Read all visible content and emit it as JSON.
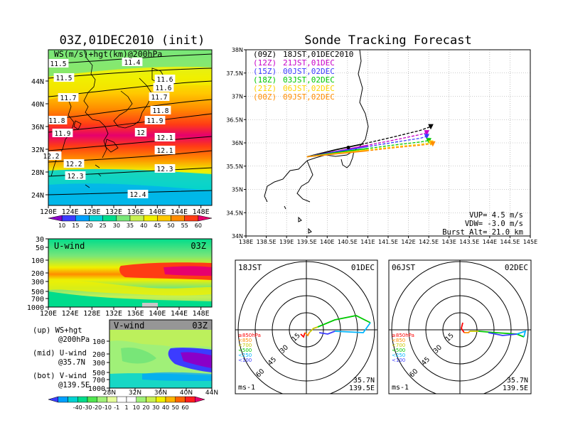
{
  "titles": {
    "left": "03Z,01DEC2010 (init)",
    "right": "Sonde Tracking Forecast"
  },
  "colors": {
    "wind_scale": [
      "#8a00c8",
      "#3c3cff",
      "#00a0ff",
      "#00d2d2",
      "#00dc8c",
      "#78e678",
      "#c8f050",
      "#f0f000",
      "#ffc800",
      "#ff8c00",
      "#ff3c14",
      "#e6006e"
    ],
    "vwind_scale": [
      "#3c3cff",
      "#00a0ff",
      "#00d2d2",
      "#00dc8c",
      "#50e650",
      "#a0f078",
      "#e6ff9b",
      "#ffffff",
      "#ffffff",
      "#a0f078",
      "#c8f050",
      "#f0f000",
      "#ffb400",
      "#ff6400",
      "#ff1e1e",
      "#e6006e"
    ],
    "track_18jst": "#000000",
    "track_21jst": "#c800c8",
    "track_00jst": "#3c3cff",
    "track_03jst": "#00c800",
    "track_06jst": "#ffd200",
    "track_09jst": "#ff8c00"
  },
  "chart_data": [
    {
      "type": "heatmap",
      "title": "WS(m/s)+hgt(km)@200hPa",
      "x_ticks": [
        "120E",
        "124E",
        "128E",
        "132E",
        "136E",
        "140E",
        "144E",
        "148E"
      ],
      "y_ticks": [
        "24N",
        "28N",
        "32N",
        "36N",
        "40N",
        "44N"
      ],
      "contour_labels": [
        "11.4",
        "11.5",
        "11.5",
        "11.6",
        "11.6",
        "11.7",
        "11.7",
        "11.8",
        "11.8",
        "11.9",
        "11.9",
        "12",
        "12.1",
        "12.2",
        "12.1",
        "12.2",
        "12.3",
        "12.3",
        "12.4"
      ],
      "colorbar_labels": [
        "10",
        "15",
        "20",
        "25",
        "30",
        "35",
        "40",
        "45",
        "50",
        "55",
        "60"
      ]
    },
    {
      "type": "heatmap",
      "title": "U-wind",
      "time": "03Z",
      "x_ticks": [
        "120E",
        "124E",
        "128E",
        "132E",
        "136E",
        "140E",
        "144E",
        "148E"
      ],
      "y_ticks": [
        "30",
        "50",
        "100",
        "200",
        "300",
        "500",
        "700",
        "1000"
      ]
    },
    {
      "type": "heatmap",
      "title": "V-wind",
      "time": "03Z",
      "x_ticks": [
        "28N",
        "32N",
        "36N",
        "40N",
        "44N"
      ],
      "y_ticks": [
        "100",
        "200",
        "300",
        "500",
        "700",
        "1000"
      ],
      "colorbar_labels": [
        "-40",
        "-30",
        "-20",
        "-10",
        "-1",
        "1",
        "10",
        "20",
        "30",
        "40",
        "50",
        "60"
      ]
    },
    {
      "type": "line",
      "title": "Sonde Tracking Forecast",
      "x_ticks": [
        "138E",
        "138.5E",
        "139E",
        "139.5E",
        "140E",
        "140.5E",
        "141E",
        "141.5E",
        "142E",
        "142.5E",
        "143E",
        "143.5E",
        "144E",
        "144.5E",
        "145E"
      ],
      "y_ticks": [
        "34N",
        "34.5N",
        "35N",
        "35.5N",
        "36N",
        "36.5N",
        "37N",
        "37.5N",
        "38N"
      ],
      "xlim": [
        138,
        145
      ],
      "ylim": [
        34,
        38
      ],
      "series": [
        {
          "name": "(09Z) 18JST,01DEC2010",
          "color_key": "track_18jst",
          "x": [
            139.5,
            140.2,
            140.9,
            141.6,
            142.3,
            142.55
          ],
          "y": [
            35.7,
            35.85,
            35.98,
            36.12,
            36.27,
            36.35
          ]
        },
        {
          "name": "(12Z) 21JST,01DEC",
          "color_key": "track_21jst",
          "x": [
            139.5,
            140.3,
            141.0,
            141.7,
            142.3,
            142.45
          ],
          "y": [
            35.7,
            35.83,
            35.95,
            36.07,
            36.18,
            36.22
          ]
        },
        {
          "name": "(15Z) 00JST,02DEC",
          "color_key": "track_00jst",
          "x": [
            139.5,
            140.3,
            141.0,
            141.7,
            142.3,
            142.45
          ],
          "y": [
            35.7,
            35.82,
            35.92,
            36.02,
            36.1,
            36.14
          ]
        },
        {
          "name": "(18Z) 03JST,02DEC",
          "color_key": "track_03jst",
          "x": [
            139.5,
            140.3,
            141.0,
            141.7,
            142.3,
            142.5
          ],
          "y": [
            35.7,
            35.8,
            35.88,
            35.96,
            36.02,
            36.05
          ]
        },
        {
          "name": "(21Z) 06JST,02DEC",
          "color_key": "track_06jst",
          "x": [
            139.5,
            140.3,
            141.0,
            141.7,
            142.3,
            142.55
          ],
          "y": [
            35.7,
            35.78,
            35.85,
            35.92,
            35.97,
            36.0
          ]
        },
        {
          "name": "(00Z) 09JST,02DEC",
          "color_key": "track_09jst",
          "x": [
            139.5,
            140.3,
            141.0,
            141.7,
            142.3,
            142.6
          ],
          "y": [
            35.7,
            35.77,
            35.83,
            35.9,
            35.95,
            35.98
          ]
        }
      ],
      "annotations": [
        "VUP= 4.5 m/s",
        "VDW= -3.0 m/s",
        "Burst Alt= 21.0 km"
      ]
    }
  ],
  "labels": {
    "ws_title": "WS(m/s)+hgt(km)@200hPa",
    "u_title": "U-wind",
    "u_time": "03Z",
    "v_title": "V-wind",
    "v_time": "03Z",
    "caption_up_1": "(up) WS+hgt",
    "caption_up_2": "@200hPa",
    "caption_mid_1": "(mid) U-wind",
    "caption_mid_2": "@35.7N",
    "caption_bot_1": "(bot) V-wind",
    "caption_bot_2": "@139.5E",
    "vup": "VUP= 4.5 m/s",
    "vdw": "VDW= -3.0 m/s",
    "burst": "Burst Alt= 21.0 km",
    "legend": [
      {
        "time": "(09Z)",
        "text": "18JST,01DEC2010"
      },
      {
        "time": "(12Z)",
        "text": "21JST,01DEC"
      },
      {
        "time": "(15Z)",
        "text": "00JST,02DEC"
      },
      {
        "time": "(18Z)",
        "text": "03JST,02DEC"
      },
      {
        "time": "(21Z)",
        "text": "06JST,02DEC"
      },
      {
        "time": "(00Z)",
        "text": "09JST,02DEC"
      }
    ],
    "hodo_left": {
      "time": "18JST",
      "date": "01DEC",
      "lat": "35.7N",
      "lon": "139.5E",
      "units": "ms-1"
    },
    "hodo_right": {
      "time": "06JST",
      "date": "02DEC",
      "lat": "35.7N",
      "lon": "139.5E",
      "units": "ms-1"
    },
    "hodo_rings": [
      "15",
      "30",
      "45",
      "60"
    ],
    "hodo_legend": [
      "≥850hPa",
      "<850",
      "<700",
      "<500",
      "<250",
      "<100"
    ]
  }
}
